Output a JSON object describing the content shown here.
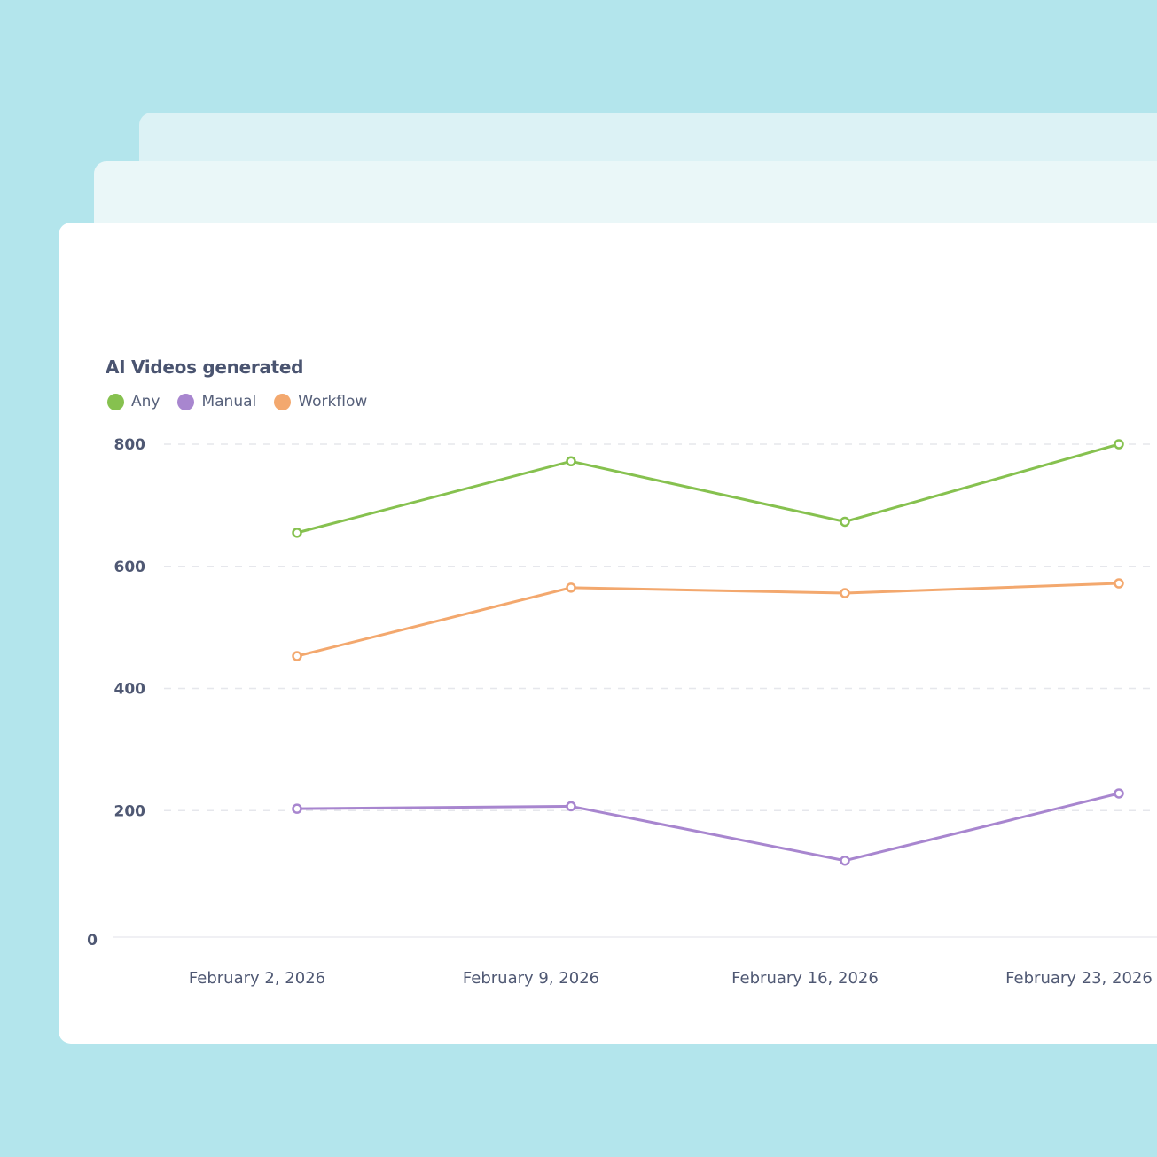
{
  "chart_data": {
    "type": "line",
    "title": "AI Videos generated",
    "categories": [
      "February 2, 2026",
      "February 9, 2026",
      "February 16, 2026",
      "February 23, 2026"
    ],
    "series": [
      {
        "name": "Any",
        "color": "#86c14f",
        "values": [
          655,
          772,
          673,
          800
        ]
      },
      {
        "name": "Manual",
        "color": "#a886cf",
        "values": [
          203,
          207,
          118,
          228
        ]
      },
      {
        "name": "Workflow",
        "color": "#f3a86e",
        "values": [
          453,
          565,
          556,
          572
        ]
      }
    ],
    "yticks": [
      "0",
      "200",
      "400",
      "600",
      "800"
    ],
    "ylim": [
      0,
      800
    ],
    "grid": true,
    "legend": "top-left",
    "xlabel": "",
    "ylabel": ""
  },
  "background_color": "#b3e5ec"
}
